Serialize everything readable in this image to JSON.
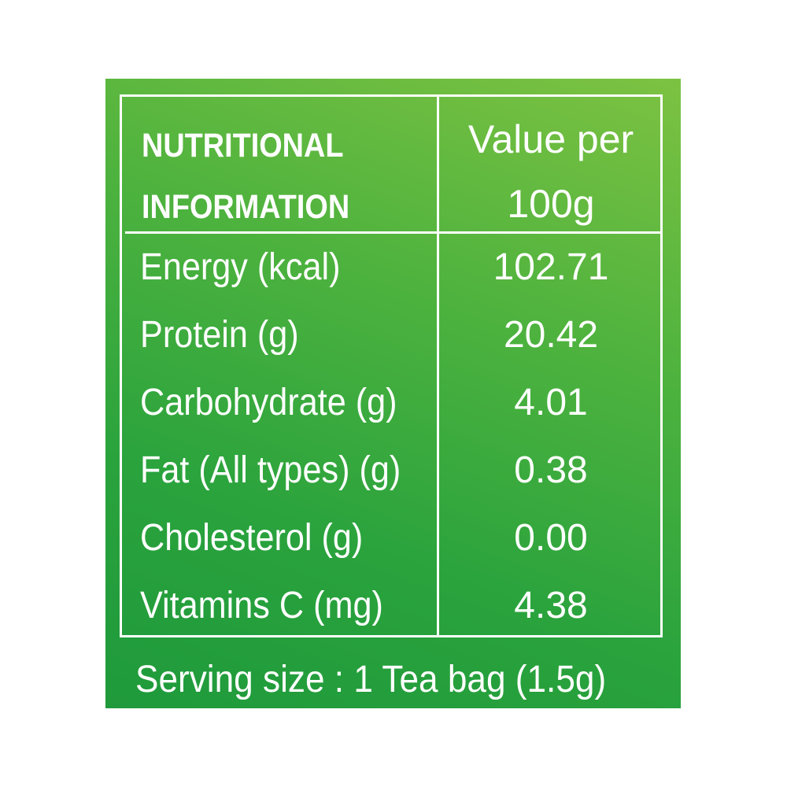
{
  "header": {
    "left_line1": "NUTRITIONAL",
    "left_line2": "INFORMATION",
    "right_line1": "Value per",
    "right_line2": "100g"
  },
  "rows": [
    {
      "label": "Energy (kcal)",
      "value": "102.71"
    },
    {
      "label": "Protein (g)",
      "value": "20.42"
    },
    {
      "label": "Carbohydrate (g)",
      "value": "4.01"
    },
    {
      "label": "Fat (All types) (g)",
      "value": "0.38"
    },
    {
      "label": "Cholesterol (g)",
      "value": "0.00"
    },
    {
      "label": "Vitamins C (mg)",
      "value": "4.38"
    }
  ],
  "footer": "Serving size : 1 Tea bag (1.5g)",
  "colors": {
    "background_top": "#7dc242",
    "background_bottom": "#1f9a3b",
    "text": "#ffffff"
  }
}
